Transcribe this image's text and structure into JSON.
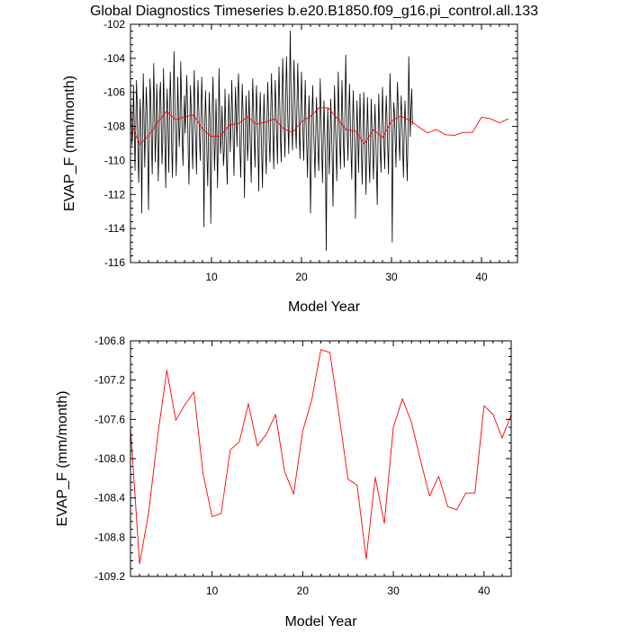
{
  "title": "Global Diagnostics Timeseries b.e20.B1850.f09_g16.pi_control.all.133",
  "colors": {
    "monthly": "#000000",
    "annual": "#ff0000",
    "frame": "#000000"
  },
  "chart_data": [
    {
      "type": "line",
      "title": "Global Diagnostics Timeseries b.e20.B1850.f09_g16.pi_control.all.133",
      "xlabel": "Model Year",
      "ylabel": "EVAP_F (mm/month)",
      "xlim": [
        1,
        44
      ],
      "ylim": [
        -116,
        -102
      ],
      "x_ticks": [
        10,
        20,
        30,
        40
      ],
      "y_ticks": [
        -116,
        -114,
        -112,
        -110,
        -108,
        -106,
        -104,
        -102
      ],
      "y_tick_labels": [
        "-116",
        "-114",
        "-112",
        "-110",
        "-108",
        "-106",
        "-104",
        "-102"
      ],
      "series": [
        {
          "style": "monthly",
          "color": "#000000",
          "x_start": 1.0,
          "x_step": 0.0833333,
          "values": [
            -106.5,
            -107.2,
            -109.1,
            -108.4,
            -105.6,
            -107.9,
            -110.6,
            -108.2,
            -105.3,
            -106.8,
            -109.8,
            -111.3,
            -107.9,
            -106.4,
            -108.7,
            -113.1,
            -108.3,
            -104.9,
            -107.5,
            -110.4,
            -108.0,
            -105.7,
            -106.9,
            -109.6,
            -112.9,
            -108.8,
            -105.2,
            -106.3,
            -109.2,
            -110.8,
            -107.6,
            -104.3,
            -107.1,
            -110.1,
            -108.5,
            -105.5,
            -107.4,
            -111.2,
            -109.3,
            -106.1,
            -105.4,
            -107.8,
            -110.2,
            -108.9,
            -104.6,
            -106.9,
            -109.4,
            -111.6,
            -107.3,
            -105.8,
            -108.1,
            -110.7,
            -107.5,
            -104.8,
            -106.6,
            -109.5,
            -111.0,
            -107.0,
            -103.6,
            -106.2,
            -108.6,
            -110.9,
            -108.3,
            -105.1,
            -107.3,
            -109.2,
            -107.9,
            -104.2,
            -106.4,
            -108.8,
            -110.3,
            -107.6,
            -106.2,
            -108.4,
            -107.1,
            -105.0,
            -106.8,
            -109.7,
            -111.4,
            -108.0,
            -105.6,
            -107.0,
            -109.1,
            -110.5,
            -106.9,
            -104.7,
            -107.7,
            -109.0,
            -110.8,
            -107.2,
            -105.3,
            -106.9,
            -108.6,
            -110.0,
            -107.4,
            -105.1,
            -107.2,
            -109.3,
            -113.9,
            -108.1,
            -105.9,
            -107.6,
            -109.8,
            -111.5,
            -108.4,
            -106.0,
            -107.5,
            -113.7,
            -110.2,
            -106.9,
            -105.1,
            -107.9,
            -110.6,
            -109.0,
            -106.4,
            -108.3,
            -111.6,
            -108.9,
            -104.6,
            -107.0,
            -109.6,
            -108.8,
            -106.8,
            -108.5,
            -110.3,
            -109.4,
            -105.8,
            -107.8,
            -109.9,
            -111.4,
            -108.7,
            -106.1,
            -107.4,
            -109.5,
            -108.0,
            -105.3,
            -107.1,
            -109.0,
            -110.9,
            -107.9,
            -105.7,
            -107.5,
            -109.2,
            -106.3,
            -104.9,
            -107.3,
            -109.5,
            -111.0,
            -108.1,
            -105.5,
            -107.0,
            -109.1,
            -112.2,
            -108.6,
            -106.2,
            -107.4,
            -110.0,
            -109.0,
            -105.9,
            -107.7,
            -109.6,
            -111.3,
            -107.6,
            -105.2,
            -106.9,
            -108.8,
            -110.4,
            -107.3,
            -105.6,
            -107.5,
            -109.3,
            -111.8,
            -107.9,
            -106.0,
            -107.9,
            -109.7,
            -111.6,
            -108.2,
            -106.1,
            -107.9,
            -109.4,
            -110.8,
            -107.5,
            -105.4,
            -107.2,
            -109.0,
            -110.1,
            -107.1,
            -104.9,
            -106.8,
            -108.9,
            -110.5,
            -107.4,
            -105.3,
            -107.0,
            -108.6,
            -110.2,
            -106.9,
            -104.5,
            -106.6,
            -108.9,
            -110.1,
            -106.5,
            -104.0,
            -106.2,
            -108.3,
            -109.8,
            -106.2,
            -103.9,
            -106.1,
            -108.0,
            -109.6,
            -106.0,
            -102.4,
            -105.8,
            -107.9,
            -109.4,
            -106.3,
            -104.1,
            -106.0,
            -108.1,
            -109.3,
            -106.6,
            -104.3,
            -106.4,
            -108.5,
            -109.9,
            -107.1,
            -104.8,
            -106.8,
            -108.6,
            -110.0,
            -107.4,
            -105.3,
            -107.6,
            -109.2,
            -111.0,
            -108.3,
            -106.2,
            -108.0,
            -113.1,
            -110.4,
            -107.3,
            -105.6,
            -107.9,
            -109.4,
            -111.0,
            -108.5,
            -106.3,
            -107.7,
            -109.6,
            -110.6,
            -107.9,
            -105.2,
            -107.4,
            -109.5,
            -111.3,
            -108.6,
            -106.5,
            -108.3,
            -110.3,
            -115.3,
            -109.4,
            -106.9,
            -108.6,
            -110.8,
            -109.0,
            -106.4,
            -108.1,
            -110.1,
            -112.7,
            -109.2,
            -105.6,
            -107.5,
            -109.3,
            -111.2,
            -108.4,
            -104.8,
            -107.1,
            -109.0,
            -110.5,
            -107.7,
            -105.3,
            -107.4,
            -109.2,
            -110.4,
            -106.9,
            -103.8,
            -106.7,
            -108.5,
            -110.0,
            -107.3,
            -105.5,
            -107.6,
            -109.5,
            -111.1,
            -108.0,
            -105.9,
            -107.8,
            -109.6,
            -113.4,
            -109.1,
            -106.5,
            -108.2,
            -110.7,
            -108.5,
            -106.1,
            -107.9,
            -109.8,
            -111.4,
            -108.7,
            -106.0,
            -107.9,
            -109.6,
            -112.0,
            -108.8,
            -106.3,
            -108.3,
            -110.0,
            -111.3,
            -108.9,
            -106.4,
            -108.1,
            -109.8,
            -111.1,
            -108.4,
            -106.7,
            -108.5,
            -110.6,
            -112.6,
            -108.9,
            -106.1,
            -107.8,
            -109.4,
            -110.7,
            -107.9,
            -105.7,
            -107.5,
            -109.2,
            -110.5,
            -107.8,
            -106.2,
            -107.6,
            -109.3,
            -110.8,
            -107.5,
            -104.9,
            -106.7,
            -108.4,
            -114.8,
            -108.9,
            -106.6,
            -107.2,
            -108.9,
            -110.4,
            -107.3,
            -105.4,
            -106.9,
            -108.8,
            -110.0,
            -107.6,
            -106.2,
            -107.8,
            -109.5,
            -111.0,
            -108.1,
            -106.5,
            -108.0,
            -109.7,
            -111.2,
            -108.4,
            -103.9,
            -106.5,
            -108.6,
            -107.0,
            -105.8,
            -107.9
          ]
        },
        {
          "style": "annual",
          "color": "#ff0000",
          "x": [
            1,
            2,
            3,
            4,
            5,
            6,
            7,
            8,
            9,
            10,
            11,
            12,
            13,
            14,
            15,
            16,
            17,
            18,
            19,
            20,
            21,
            22,
            23,
            24,
            25,
            26,
            27,
            28,
            29,
            30,
            31,
            32,
            33,
            34,
            35,
            36,
            37,
            38,
            39,
            40,
            41,
            42,
            43
          ],
          "values": [
            -107.68,
            -109.07,
            -108.55,
            -107.77,
            -107.1,
            -107.61,
            -107.45,
            -107.32,
            -108.15,
            -108.59,
            -108.56,
            -107.91,
            -107.83,
            -107.44,
            -107.87,
            -107.75,
            -107.55,
            -108.13,
            -108.36,
            -107.72,
            -107.4,
            -106.89,
            -106.92,
            -107.55,
            -108.21,
            -108.27,
            -109.02,
            -108.19,
            -108.66,
            -107.68,
            -107.39,
            -107.63,
            -108.02,
            -108.38,
            -108.18,
            -108.49,
            -108.52,
            -108.35,
            -108.35,
            -107.46,
            -107.55,
            -107.79,
            -107.55
          ]
        }
      ]
    },
    {
      "type": "line",
      "xlabel": "Model Year",
      "ylabel": "EVAP_F (mm/month)",
      "xlim": [
        1,
        43
      ],
      "ylim": [
        -109.2,
        -106.8
      ],
      "x_ticks": [
        10,
        20,
        30,
        40
      ],
      "y_ticks": [
        -109.2,
        -108.8,
        -108.4,
        -108.0,
        -107.6,
        -107.2,
        -106.8
      ],
      "y_tick_labels": [
        "-109.2",
        "-108.8",
        "-108.4",
        "-108.0",
        "-107.6",
        "-107.2",
        "-106.8"
      ],
      "series": [
        {
          "style": "annual",
          "color": "#ff0000",
          "x": [
            1,
            2,
            3,
            4,
            5,
            6,
            7,
            8,
            9,
            10,
            11,
            12,
            13,
            14,
            15,
            16,
            17,
            18,
            19,
            20,
            21,
            22,
            23,
            24,
            25,
            26,
            27,
            28,
            29,
            30,
            31,
            32,
            33,
            34,
            35,
            36,
            37,
            38,
            39,
            40,
            41,
            42,
            43
          ],
          "values": [
            -107.68,
            -109.07,
            -108.55,
            -107.77,
            -107.1,
            -107.61,
            -107.45,
            -107.32,
            -108.15,
            -108.59,
            -108.56,
            -107.91,
            -107.83,
            -107.44,
            -107.87,
            -107.75,
            -107.55,
            -108.13,
            -108.36,
            -107.72,
            -107.4,
            -106.89,
            -106.92,
            -107.55,
            -108.21,
            -108.27,
            -109.02,
            -108.19,
            -108.66,
            -107.68,
            -107.39,
            -107.63,
            -108.02,
            -108.38,
            -108.18,
            -108.49,
            -108.52,
            -108.35,
            -108.35,
            -107.46,
            -107.55,
            -107.79,
            -107.55
          ]
        }
      ]
    }
  ]
}
